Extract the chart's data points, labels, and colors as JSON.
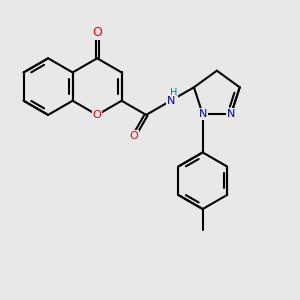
{
  "bg_color": "#e8e8e8",
  "bond_color": "#000000",
  "bond_width": 1.5,
  "figsize": [
    3.0,
    3.0
  ],
  "dpi": 100,
  "xlim": [
    -2.5,
    2.8
  ],
  "ylim": [
    -2.8,
    2.0
  ],
  "atom_colors": {
    "O": "#ff0000",
    "N": "#0000cc",
    "H": "#008080",
    "C": "#000000"
  },
  "font_size": 8
}
